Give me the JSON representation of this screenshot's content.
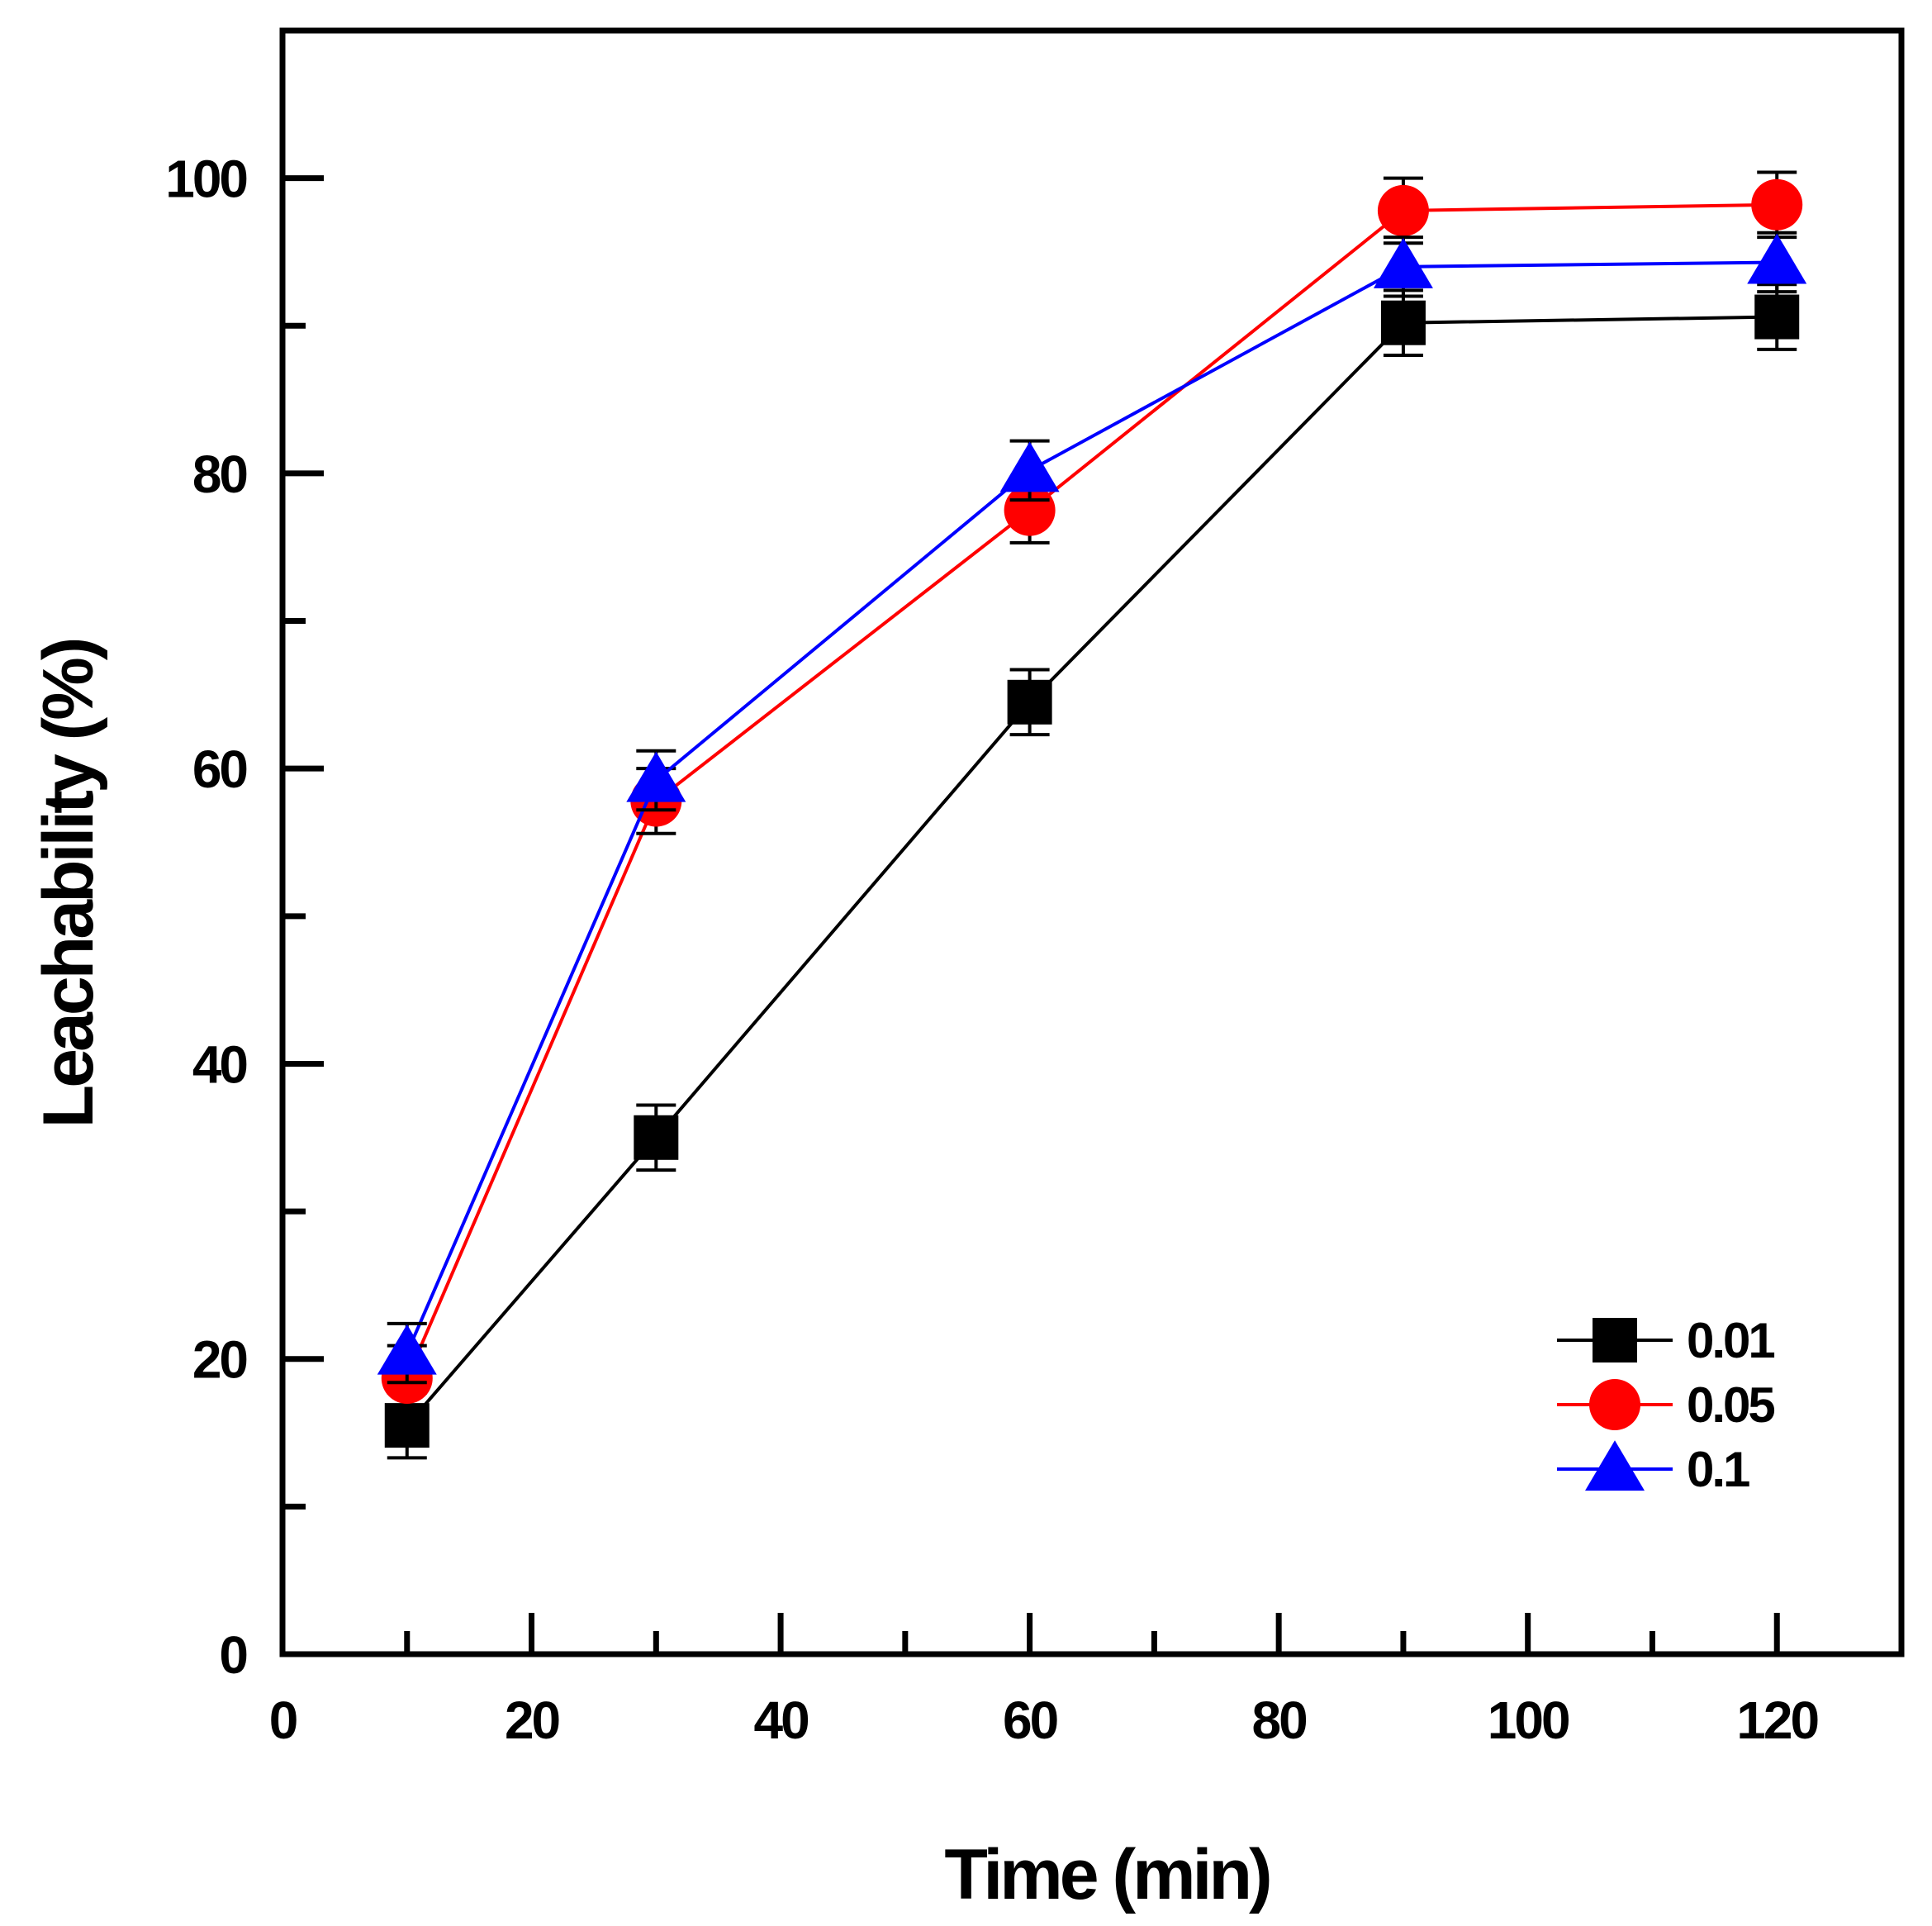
{
  "chart_data": {
    "type": "line",
    "title": "",
    "xlabel": "Time (min)",
    "ylabel": "Leachability (%)",
    "xlim": [
      0,
      130
    ],
    "ylim": [
      0,
      110
    ],
    "xticks": [
      0,
      20,
      40,
      60,
      80,
      100,
      120
    ],
    "yticks": [
      0,
      20,
      40,
      60,
      80,
      100
    ],
    "x": [
      10,
      30,
      60,
      90,
      120
    ],
    "grid": false,
    "legend": "bottom-right",
    "series": [
      {
        "name": "0.01",
        "color": "#000000",
        "marker": "square",
        "values": [
          15.5,
          35.0,
          64.5,
          90.2,
          90.6
        ],
        "errors": [
          2.2,
          2.2,
          2.2,
          2.2,
          2.2
        ]
      },
      {
        "name": "0.05",
        "color": "#ff0000",
        "marker": "circle",
        "values": [
          18.7,
          57.8,
          77.5,
          97.8,
          98.2
        ],
        "errors": [
          2.2,
          2.2,
          2.2,
          2.2,
          2.2
        ]
      },
      {
        "name": "0.1",
        "color": "#0000ff",
        "marker": "triangle",
        "values": [
          20.4,
          59.2,
          80.2,
          94.0,
          94.3
        ],
        "errors": [
          2.0,
          2.0,
          2.0,
          2.0,
          2.0
        ]
      }
    ]
  }
}
